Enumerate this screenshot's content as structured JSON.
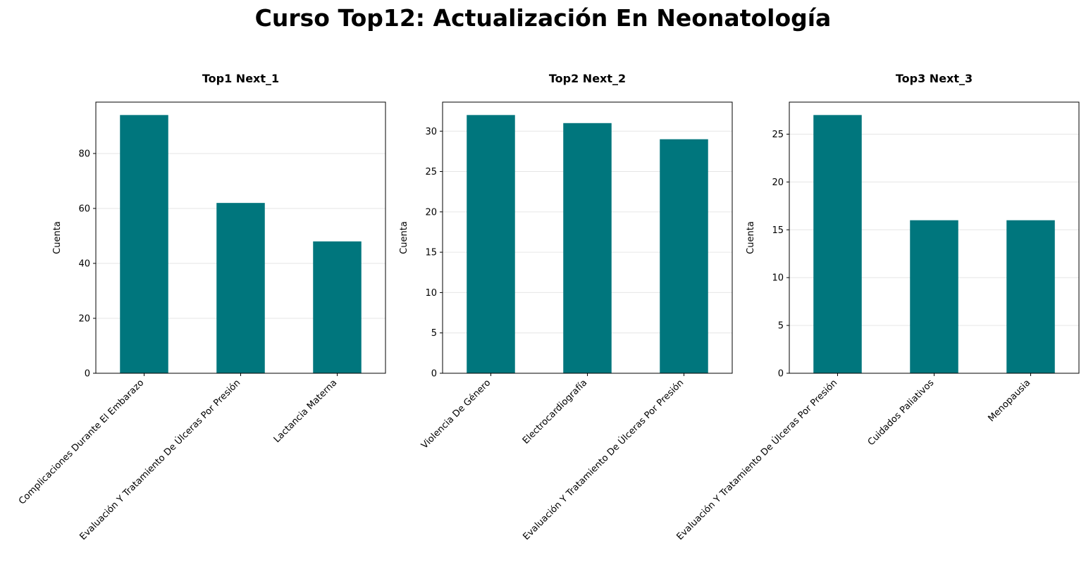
{
  "title": "Curso Top12: Actualización En Neonatología",
  "colors": {
    "bar": "#00767d",
    "grid": "#e6e6e6",
    "axis": "#000000"
  },
  "chart_data": [
    {
      "type": "bar",
      "title": "Top1 Next_1",
      "xlabel": "",
      "ylabel": "Cuenta",
      "categories": [
        "Complicaciones Durante El Embarazo",
        "Evaluación Y Tratamiento De Úlceras Por Presión",
        "Lactancia Materna"
      ],
      "values": [
        94,
        62,
        48
      ],
      "ylim": [
        0,
        98.7
      ],
      "yticks": [
        0,
        20,
        40,
        60,
        80
      ],
      "grid": "y"
    },
    {
      "type": "bar",
      "title": "Top2 Next_2",
      "xlabel": "",
      "ylabel": "Cuenta",
      "categories": [
        "Violencia De Género",
        "Electrocardiografía",
        "Evaluación Y Tratamiento De Úlceras Por Presión"
      ],
      "values": [
        32,
        31,
        29
      ],
      "ylim": [
        0,
        33.6
      ],
      "yticks": [
        0,
        5,
        10,
        15,
        20,
        25,
        30
      ],
      "grid": "y"
    },
    {
      "type": "bar",
      "title": "Top3 Next_3",
      "xlabel": "",
      "ylabel": "Cuenta",
      "categories": [
        "Evaluación Y Tratamiento De Úlceras Por Presión",
        "Cuidados Paliativos",
        "Menopausia"
      ],
      "values": [
        27,
        16,
        16
      ],
      "ylim": [
        0,
        28.35
      ],
      "yticks": [
        0,
        5,
        10,
        15,
        20,
        25
      ],
      "grid": "y"
    }
  ]
}
